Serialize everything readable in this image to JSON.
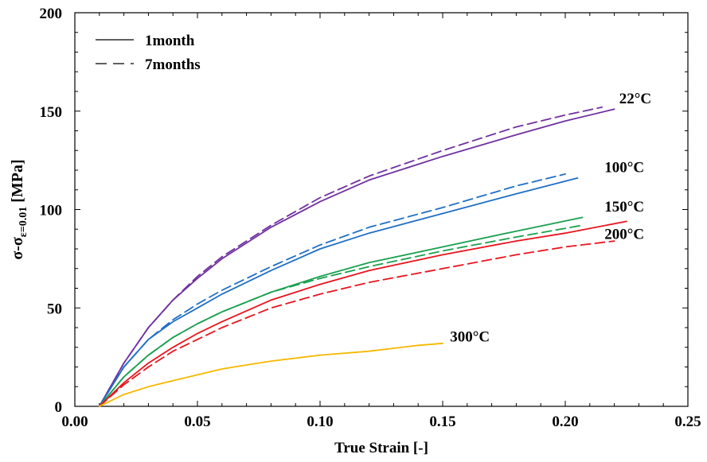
{
  "chart_data": {
    "type": "line",
    "title": "",
    "xlabel": "True Strain [-]",
    "ylabel": {
      "main": "σ-σ",
      "sub": "ε=0.01",
      "unit": " [MPa]"
    },
    "xlim": [
      0.0,
      0.25
    ],
    "ylim": [
      0,
      200
    ],
    "xticks": [
      "0.00",
      "0.05",
      "0.10",
      "0.15",
      "0.20",
      "0.25"
    ],
    "xtick_values": [
      0.0,
      0.05,
      0.1,
      0.15,
      0.2,
      0.25
    ],
    "yticks": [
      "0",
      "50",
      "100",
      "150",
      "200"
    ],
    "ytick_values": [
      0,
      50,
      100,
      150,
      200
    ],
    "grid": false,
    "legend": {
      "position": "top-left",
      "entries": [
        {
          "label": "1month",
          "dash": "solid"
        },
        {
          "label": "7months",
          "dash": "dashed"
        }
      ]
    },
    "annotations": [
      {
        "text": "22°C",
        "x": 0.222,
        "y": 154
      },
      {
        "text": "100°C",
        "x": 0.216,
        "y": 119
      },
      {
        "text": "150°C",
        "x": 0.216,
        "y": 99
      },
      {
        "text": "200°C",
        "x": 0.216,
        "y": 85
      },
      {
        "text": "300°C",
        "x": 0.153,
        "y": 33
      }
    ],
    "series": [
      {
        "temperature": "22°C",
        "age": "1month",
        "color": "#7030a0",
        "dash": "solid",
        "x": [
          0.01,
          0.02,
          0.03,
          0.04,
          0.05,
          0.06,
          0.08,
          0.1,
          0.12,
          0.15,
          0.18,
          0.2,
          0.22
        ],
        "y": [
          0,
          22,
          40,
          54,
          65,
          75,
          91,
          104,
          115,
          127,
          138,
          145,
          151
        ]
      },
      {
        "temperature": "22°C",
        "age": "7months",
        "color": "#7030a0",
        "dash": "dashed",
        "x": [
          0.01,
          0.02,
          0.03,
          0.04,
          0.05,
          0.06,
          0.08,
          0.1,
          0.12,
          0.15,
          0.18,
          0.2,
          0.215
        ],
        "y": [
          0,
          22,
          40,
          54,
          66,
          76,
          92,
          106,
          117,
          130,
          142,
          148,
          152
        ]
      },
      {
        "temperature": "100°C",
        "age": "1month",
        "color": "#1f6fc5",
        "dash": "solid",
        "x": [
          0.01,
          0.02,
          0.03,
          0.04,
          0.05,
          0.06,
          0.08,
          0.1,
          0.12,
          0.15,
          0.18,
          0.205
        ],
        "y": [
          0,
          20,
          34,
          43,
          50,
          57,
          69,
          80,
          88,
          98,
          108,
          116
        ]
      },
      {
        "temperature": "100°C",
        "age": "7months",
        "color": "#1f6fc5",
        "dash": "dashed",
        "x": [
          0.01,
          0.02,
          0.03,
          0.04,
          0.05,
          0.06,
          0.08,
          0.1,
          0.12,
          0.15,
          0.18,
          0.2
        ],
        "y": [
          0,
          20,
          34,
          44,
          52,
          59,
          71,
          82,
          91,
          101,
          112,
          118
        ]
      },
      {
        "temperature": "150°C",
        "age": "1month",
        "color": "#1aa050",
        "dash": "solid",
        "x": [
          0.01,
          0.02,
          0.03,
          0.04,
          0.05,
          0.06,
          0.08,
          0.1,
          0.12,
          0.15,
          0.18,
          0.207
        ],
        "y": [
          0,
          15,
          26,
          35,
          42,
          48,
          58,
          66,
          73,
          81,
          89,
          96
        ]
      },
      {
        "temperature": "150°C",
        "age": "7months",
        "color": "#1aa050",
        "dash": "dashed",
        "x": [
          0.01,
          0.02,
          0.03,
          0.04,
          0.05,
          0.06,
          0.08,
          0.1,
          0.12,
          0.15,
          0.18,
          0.207
        ],
        "y": [
          0,
          15,
          26,
          35,
          42,
          48,
          58,
          65,
          71,
          79,
          86,
          92
        ]
      },
      {
        "temperature": "200°C",
        "age": "1month",
        "color": "#e8141e",
        "dash": "solid",
        "x": [
          0.01,
          0.02,
          0.03,
          0.04,
          0.05,
          0.06,
          0.08,
          0.1,
          0.12,
          0.15,
          0.18,
          0.2,
          0.225
        ],
        "y": [
          0,
          12,
          22,
          30,
          37,
          43,
          54,
          62,
          69,
          77,
          84,
          88,
          94
        ]
      },
      {
        "temperature": "200°C",
        "age": "7months",
        "color": "#e8141e",
        "dash": "dashed",
        "x": [
          0.01,
          0.02,
          0.03,
          0.04,
          0.05,
          0.06,
          0.08,
          0.1,
          0.12,
          0.15,
          0.18,
          0.2,
          0.22
        ],
        "y": [
          0,
          11,
          20,
          28,
          34,
          40,
          50,
          57,
          63,
          70,
          77,
          81,
          84
        ]
      },
      {
        "temperature": "300°C",
        "age": "1month",
        "color": "#f5b800",
        "dash": "solid",
        "x": [
          0.01,
          0.02,
          0.03,
          0.04,
          0.05,
          0.06,
          0.07,
          0.08,
          0.1,
          0.12,
          0.14,
          0.15
        ],
        "y": [
          0,
          6,
          10,
          13,
          16,
          19,
          21,
          23,
          26,
          28,
          31,
          32
        ]
      }
    ]
  }
}
